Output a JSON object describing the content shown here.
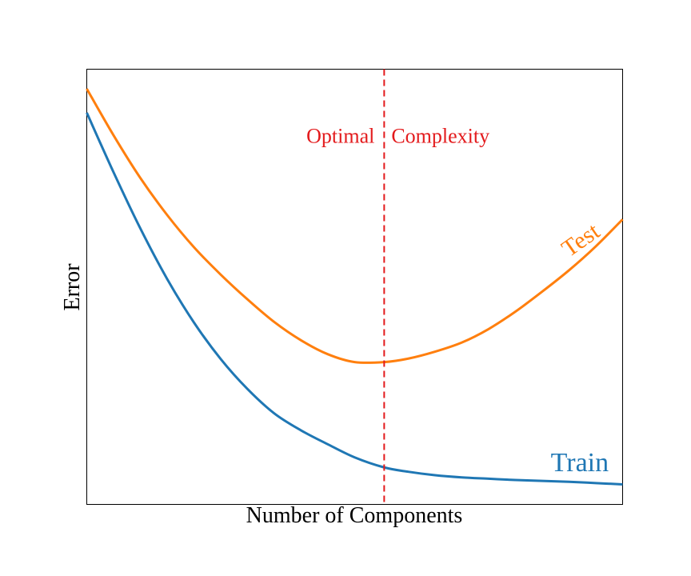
{
  "chart_data": {
    "type": "line",
    "title": "",
    "xlabel": "Number of Components",
    "ylabel": "Error",
    "xlim": [
      0,
      1
    ],
    "ylim": [
      0,
      1
    ],
    "xticks": [],
    "yticks": [],
    "grid": false,
    "series": [
      {
        "name": "Test",
        "color": "#ff7f0e",
        "x": [
          0.0,
          0.05,
          0.1,
          0.15,
          0.2,
          0.25,
          0.3,
          0.35,
          0.4,
          0.45,
          0.5,
          0.555,
          0.6,
          0.65,
          0.7,
          0.75,
          0.8,
          0.85,
          0.9,
          0.95,
          1.0
        ],
        "y": [
          0.955,
          0.848,
          0.75,
          0.665,
          0.591,
          0.528,
          0.471,
          0.419,
          0.377,
          0.345,
          0.327,
          0.327,
          0.335,
          0.351,
          0.372,
          0.403,
          0.443,
          0.489,
          0.538,
          0.593,
          0.655
        ]
      },
      {
        "name": "Train",
        "color": "#1f77b4",
        "x": [
          0.0,
          0.05,
          0.1,
          0.15,
          0.2,
          0.25,
          0.3,
          0.35,
          0.4,
          0.45,
          0.5,
          0.555,
          0.6,
          0.65,
          0.7,
          0.75,
          0.8,
          0.85,
          0.9,
          0.95,
          1.0
        ],
        "y": [
          0.9,
          0.763,
          0.634,
          0.518,
          0.418,
          0.334,
          0.265,
          0.209,
          0.17,
          0.138,
          0.108,
          0.085,
          0.075,
          0.067,
          0.062,
          0.059,
          0.056,
          0.054,
          0.052,
          0.049,
          0.046
        ]
      }
    ],
    "vline": {
      "x": 0.555,
      "label_left": "Optimal",
      "label_right": "Complexity",
      "color": "#e31a1c",
      "style": "dashed"
    },
    "annotations": [
      {
        "text": "Test",
        "color": "#ff7f0e",
        "at_x": 0.93,
        "rotated": true
      },
      {
        "text": "Train",
        "color": "#1f77b4",
        "at_x": 0.92,
        "rotated": false
      }
    ]
  }
}
